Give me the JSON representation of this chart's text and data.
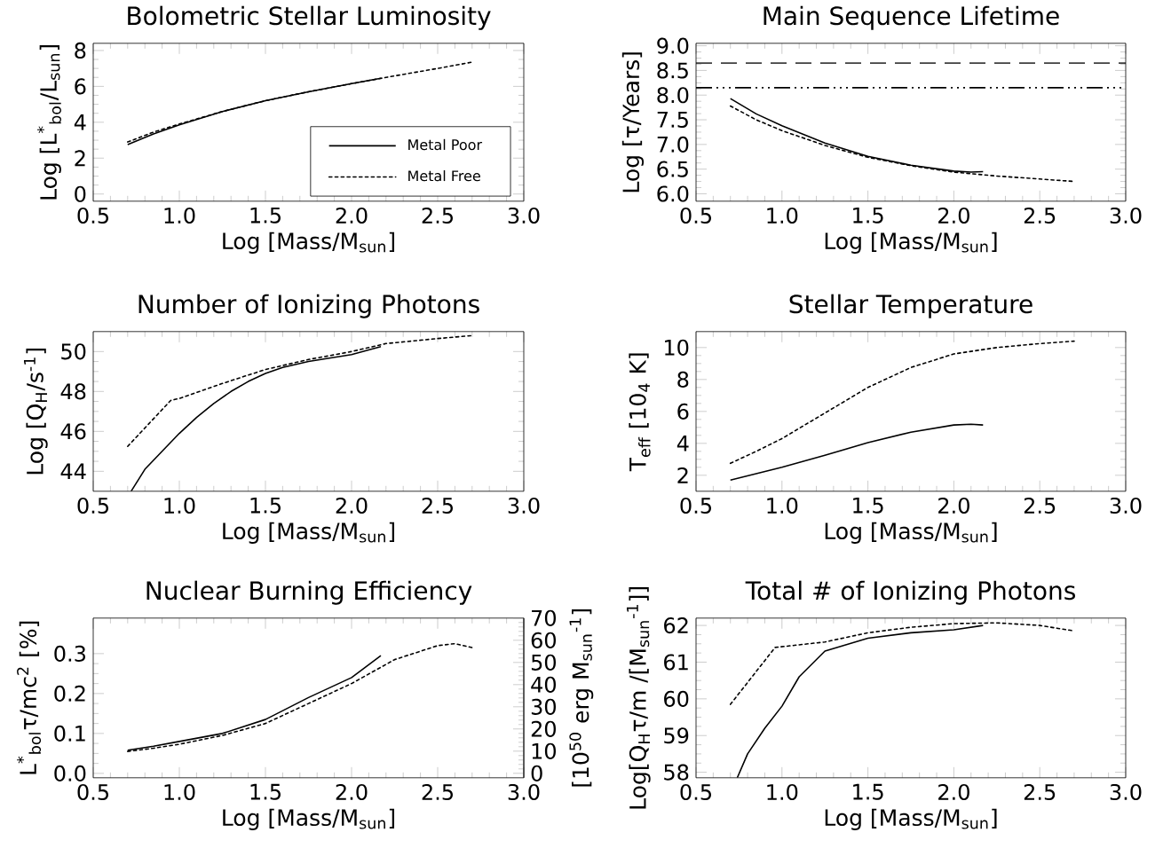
{
  "chart_data": [
    {
      "type": "line",
      "title": "Bolometric Stellar Luminosity",
      "xlabel": "Log [Mass/M$_{sun}$]",
      "ylabel": "Log [L$^{*}$$_{bol}$/L$_{sun}$]",
      "xlim": [
        0.5,
        3.0
      ],
      "ylim": [
        -0.4,
        8.4
      ],
      "xticks": [
        0.5,
        {
          "value": 1.0,
          "label": "1.0"
        },
        1.5,
        {
          "value": 2.0,
          "label": "2.0"
        },
        2.5,
        {
          "value": 3.0,
          "label": "3.0"
        }
      ],
      "yticks": [
        0,
        2,
        4,
        6,
        8
      ],
      "legend": "bottom right",
      "series": [
        {
          "name": "Metal Poor",
          "color": "#000000",
          "line_style": "solid",
          "x": [
            0.7,
            0.85,
            1.0,
            1.25,
            1.5,
            1.75,
            2.0,
            2.17
          ],
          "values": [
            2.75,
            3.35,
            3.85,
            4.6,
            5.2,
            5.7,
            6.15,
            6.45
          ]
        },
        {
          "name": "Metal Free",
          "color": "#000000",
          "line_style": "dotted",
          "x": [
            0.7,
            0.85,
            1.0,
            1.25,
            1.5,
            1.75,
            2.0,
            2.2,
            2.5,
            2.7
          ],
          "values": [
            2.9,
            3.45,
            3.9,
            4.6,
            5.2,
            5.7,
            6.15,
            6.5,
            7.0,
            7.35
          ]
        }
      ]
    },
    {
      "type": "line",
      "title": "Main Sequence Lifetime",
      "xlabel": "Log [Mass/M$_{sun}$]",
      "ylabel": "Log [τ/Years]",
      "xlim": [
        0.5,
        3.0
      ],
      "ylim": [
        5.85,
        9.05
      ],
      "xticks": [
        0.5,
        {
          "value": 1.0,
          "label": "1.0"
        },
        1.5,
        {
          "value": 2.0,
          "label": "2.0"
        },
        2.5,
        {
          "value": 3.0,
          "label": "3.0"
        }
      ],
      "yticks": [
        {
          "value": 6.0,
          "label": "6.0"
        },
        6.5,
        {
          "value": 7.0,
          "label": "7.0"
        },
        7.5,
        {
          "value": 8.0,
          "label": "8.0"
        },
        8.5,
        {
          "value": 9.0,
          "label": "9.0"
        }
      ],
      "ref_lines": [
        {
          "axis": "y",
          "value": 8.65,
          "line_style": "dashed"
        },
        {
          "axis": "y",
          "value": 8.15,
          "line_style": "dashdotdotted"
        }
      ],
      "series": [
        {
          "color": "#000000",
          "line_style": "solid",
          "x": [
            0.7,
            0.85,
            1.0,
            1.25,
            1.5,
            1.75,
            2.0,
            2.1,
            2.17
          ],
          "values": [
            7.93,
            7.62,
            7.38,
            7.03,
            6.76,
            6.58,
            6.46,
            6.44,
            6.45
          ]
        },
        {
          "color": "#000000",
          "line_style": "dotted",
          "x": [
            0.7,
            0.85,
            1.0,
            1.25,
            1.5,
            1.75,
            2.0,
            2.25,
            2.5,
            2.7
          ],
          "values": [
            7.78,
            7.5,
            7.28,
            6.98,
            6.74,
            6.57,
            6.44,
            6.36,
            6.3,
            6.25
          ]
        }
      ]
    },
    {
      "type": "line",
      "title": "Number of Ionizing Photons",
      "xlabel": "Log [Mass/M$_{sun}$]",
      "ylabel": "Log [Q$_{H}$/s$^{-1}$]",
      "xlim": [
        0.5,
        3.0
      ],
      "ylim": [
        43,
        51
      ],
      "xticks": [
        0.5,
        {
          "value": 1.0,
          "label": "1.0"
        },
        1.5,
        {
          "value": 2.0,
          "label": "2.0"
        },
        2.5,
        {
          "value": 3.0,
          "label": "3.0"
        }
      ],
      "yticks": [
        44,
        46,
        48,
        50
      ],
      "series": [
        {
          "color": "#000000",
          "line_style": "solid",
          "x": [
            0.72,
            0.8,
            0.9,
            1.0,
            1.1,
            1.2,
            1.3,
            1.4,
            1.5,
            1.6,
            1.75,
            2.0,
            2.17
          ],
          "values": [
            43.0,
            44.1,
            45.0,
            45.9,
            46.7,
            47.4,
            48.0,
            48.5,
            48.9,
            49.2,
            49.5,
            49.85,
            50.25
          ]
        },
        {
          "color": "#000000",
          "line_style": "dotted",
          "x": [
            0.7,
            0.95,
            1.0,
            1.25,
            1.5,
            1.75,
            2.0,
            2.2,
            2.5,
            2.7
          ],
          "values": [
            45.25,
            47.55,
            47.65,
            48.4,
            49.1,
            49.6,
            50.0,
            50.4,
            50.65,
            50.8
          ]
        }
      ]
    },
    {
      "type": "line",
      "title": "Stellar Temperature",
      "xlabel": "Log [Mass/M$_{sun}$]",
      "ylabel": "T$_{eff}$ [10$_{4}$ K]",
      "xlim": [
        0.5,
        3.0
      ],
      "ylim": [
        1,
        11
      ],
      "xticks": [
        0.5,
        {
          "value": 1.0,
          "label": "1.0"
        },
        1.5,
        {
          "value": 2.0,
          "label": "2.0"
        },
        2.5,
        {
          "value": 3.0,
          "label": "3.0"
        }
      ],
      "yticks": [
        2,
        4,
        6,
        8,
        10
      ],
      "series": [
        {
          "color": "#000000",
          "line_style": "solid",
          "x": [
            0.7,
            0.85,
            1.0,
            1.25,
            1.5,
            1.75,
            2.0,
            2.1,
            2.17
          ],
          "values": [
            1.7,
            2.1,
            2.5,
            3.25,
            4.05,
            4.7,
            5.15,
            5.2,
            5.15
          ]
        },
        {
          "color": "#000000",
          "line_style": "dotted",
          "x": [
            0.7,
            0.85,
            1.0,
            1.25,
            1.5,
            1.75,
            2.0,
            2.25,
            2.5,
            2.7
          ],
          "values": [
            2.75,
            3.5,
            4.3,
            5.9,
            7.5,
            8.75,
            9.6,
            10.0,
            10.25,
            10.4
          ]
        }
      ]
    },
    {
      "type": "line",
      "title": "Nuclear Burning Efficiency",
      "xlabel": "Log [Mass/M$_{sun}$]",
      "ylabel": "L$^{*}$$_{bol}$τ/mc$^{2}$ [%]",
      "y2label": "[10$^{50}$ erg M$_{sun}$$^{-1}$]",
      "xlim": [
        0.5,
        3.0
      ],
      "ylim": [
        -0.011,
        0.389
      ],
      "y2lim": [
        -2,
        70
      ],
      "xticks": [
        0.5,
        {
          "value": 1.0,
          "label": "1.0"
        },
        1.5,
        {
          "value": 2.0,
          "label": "2.0"
        },
        2.5,
        {
          "value": 3.0,
          "label": "3.0"
        }
      ],
      "yticks": [
        {
          "value": 0.0,
          "label": "0.0"
        },
        0.1,
        0.2,
        0.3
      ],
      "y2ticks": [
        0,
        10,
        20,
        30,
        40,
        50,
        60,
        70
      ],
      "series": [
        {
          "color": "#000000",
          "line_style": "solid",
          "x": [
            0.7,
            0.85,
            1.0,
            1.25,
            1.5,
            1.75,
            2.0,
            2.17
          ],
          "values": [
            0.058,
            0.068,
            0.08,
            0.1,
            0.135,
            0.19,
            0.24,
            0.295
          ]
        },
        {
          "color": "#000000",
          "line_style": "dotted",
          "x": [
            0.7,
            0.85,
            1.0,
            1.25,
            1.5,
            1.75,
            2.0,
            2.25,
            2.5,
            2.6,
            2.7
          ],
          "values": [
            0.055,
            0.063,
            0.073,
            0.095,
            0.125,
            0.175,
            0.225,
            0.285,
            0.32,
            0.325,
            0.315
          ]
        }
      ]
    },
    {
      "type": "line",
      "title": "Total # of Ionizing Photons",
      "xlabel": "Log [Mass/M$_{sun}$]",
      "ylabel": "Log[Q$_{H}$τ/m /[M$_{sun}$$^{-1}$]]",
      "xlim": [
        0.5,
        3.0
      ],
      "ylim": [
        57.85,
        62.2
      ],
      "xticks": [
        0.5,
        {
          "value": 1.0,
          "label": "1.0"
        },
        1.5,
        {
          "value": 2.0,
          "label": "2.0"
        },
        2.5,
        {
          "value": 3.0,
          "label": "3.0"
        }
      ],
      "yticks": [
        58,
        59,
        60,
        61,
        62
      ],
      "series": [
        {
          "color": "#000000",
          "line_style": "solid",
          "x": [
            0.74,
            0.8,
            0.9,
            1.0,
            1.1,
            1.25,
            1.5,
            1.75,
            2.0,
            2.17
          ],
          "values": [
            57.85,
            58.5,
            59.2,
            59.8,
            60.6,
            61.3,
            61.65,
            61.8,
            61.88,
            62.0
          ]
        },
        {
          "color": "#000000",
          "line_style": "dotted",
          "x": [
            0.7,
            0.96,
            1.25,
            1.5,
            1.75,
            2.0,
            2.25,
            2.5,
            2.7
          ],
          "values": [
            59.85,
            61.4,
            61.55,
            61.8,
            61.95,
            62.05,
            62.07,
            62.0,
            61.85
          ]
        }
      ]
    }
  ]
}
